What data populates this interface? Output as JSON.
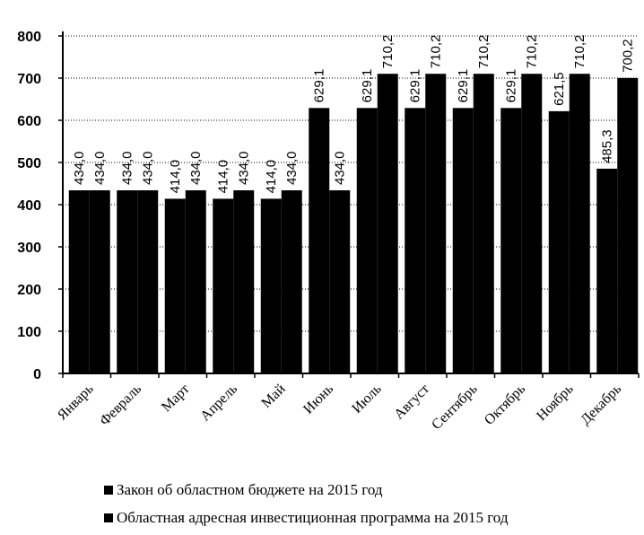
{
  "chart_data": {
    "type": "bar",
    "title": "",
    "xlabel": "",
    "ylabel": "",
    "ylim": [
      0,
      800
    ],
    "yticks": [
      0,
      100,
      200,
      300,
      400,
      500,
      600,
      700,
      800
    ],
    "grid": true,
    "legend_position": "bottom",
    "colors": {
      "series": "#000000",
      "grid": "#000000"
    },
    "categories": [
      "Январь",
      "Февраль",
      "Март",
      "Апрель",
      "Май",
      "Июнь",
      "Июль",
      "Август",
      "Сентябрь",
      "Октябрь",
      "Ноябрь",
      "Декабрь"
    ],
    "series": [
      {
        "name": "Закон об областном бюджете на 2015 год",
        "values": [
          434.0,
          434.0,
          414.0,
          414.0,
          414.0,
          629.1,
          629.1,
          629.1,
          629.1,
          629.1,
          621.5,
          485.3
        ],
        "labels": [
          "434,0",
          "434,0",
          "414,0",
          "414,0",
          "414,0",
          "629,1",
          "629,1",
          "629,1",
          "629,1",
          "629,1",
          "621,5",
          "485,3"
        ]
      },
      {
        "name": "Областная адресная инвестиционная программа на 2015 год",
        "values": [
          434.0,
          434.0,
          434.0,
          434.0,
          434.0,
          434.0,
          710.2,
          710.2,
          710.2,
          710.2,
          710.2,
          700.2
        ],
        "labels": [
          "434,0",
          "434,0",
          "434,0",
          "434,0",
          "434,0",
          "434,0",
          "710,2",
          "710,2",
          "710,2",
          "710,2",
          "710,2",
          "700,2"
        ]
      }
    ]
  }
}
